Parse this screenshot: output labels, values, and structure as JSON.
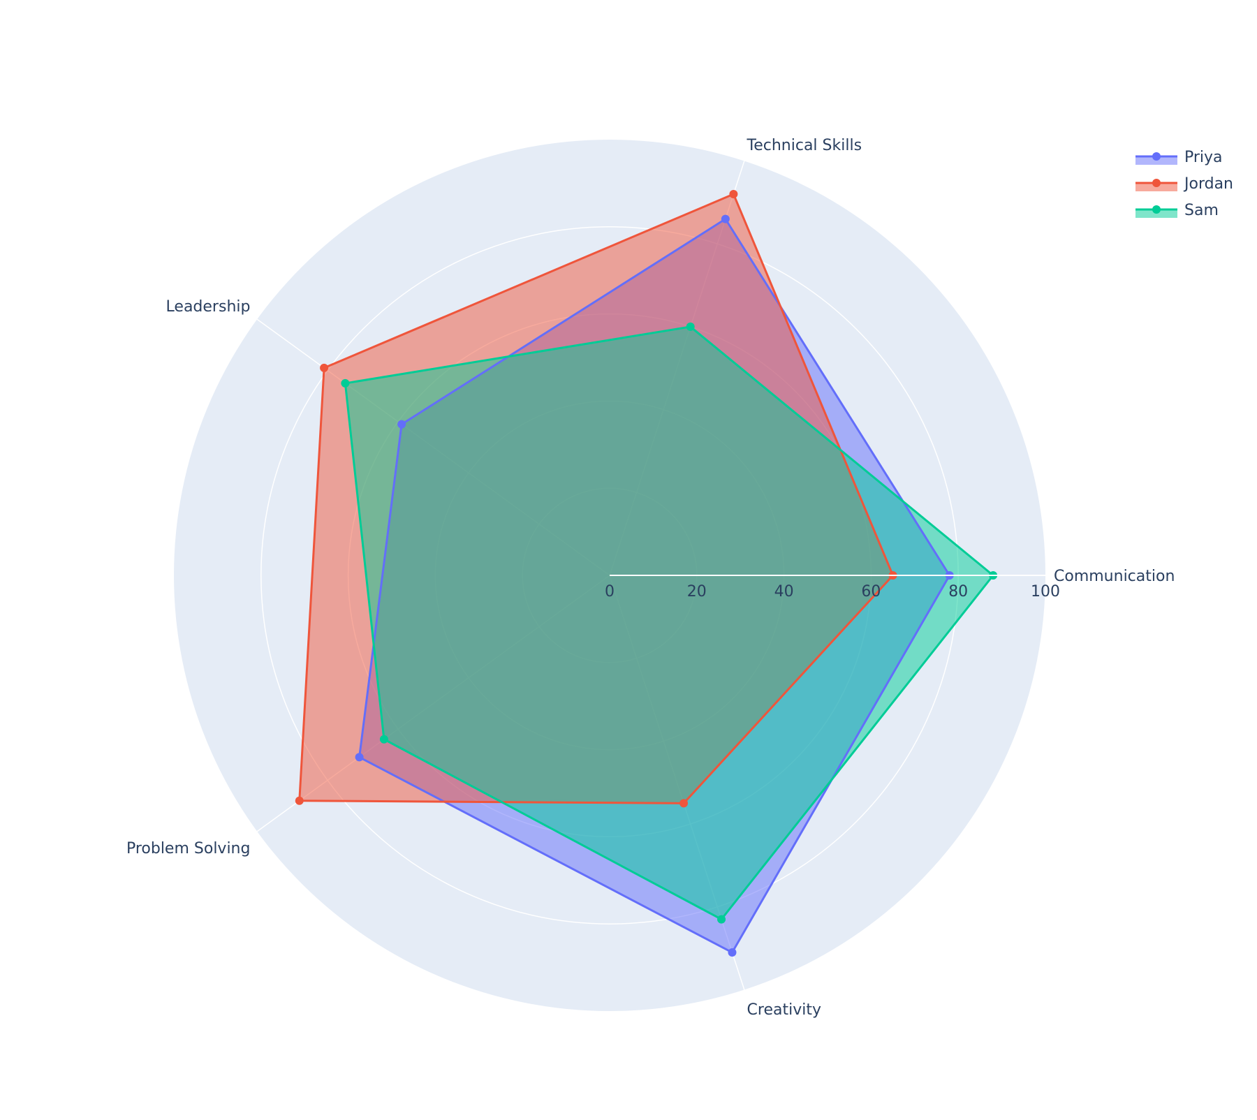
{
  "colors": {
    "background": "#ffffff",
    "polar_bg": "#e5ecf6",
    "grid": "#ffffff",
    "text": "#2a3f5f"
  },
  "chart_data": {
    "type": "radar",
    "categories": [
      "Communication",
      "Technical Skills",
      "Leadership",
      "Problem Solving",
      "Creativity"
    ],
    "radial_range": [
      0,
      100
    ],
    "radial_ticks": [
      "0",
      "20",
      "40",
      "60",
      "80",
      "100"
    ],
    "grid": true,
    "legend_position": "top-right",
    "series": [
      {
        "name": "Priya",
        "values": [
          78,
          86,
          59,
          71,
          91
        ],
        "color": "#636efa"
      },
      {
        "name": "Jordan",
        "values": [
          65,
          92,
          81,
          88,
          55
        ],
        "color": "#ef553b"
      },
      {
        "name": "Sam",
        "values": [
          88,
          60,
          75,
          64,
          83
        ],
        "color": "#00cc96"
      }
    ]
  }
}
